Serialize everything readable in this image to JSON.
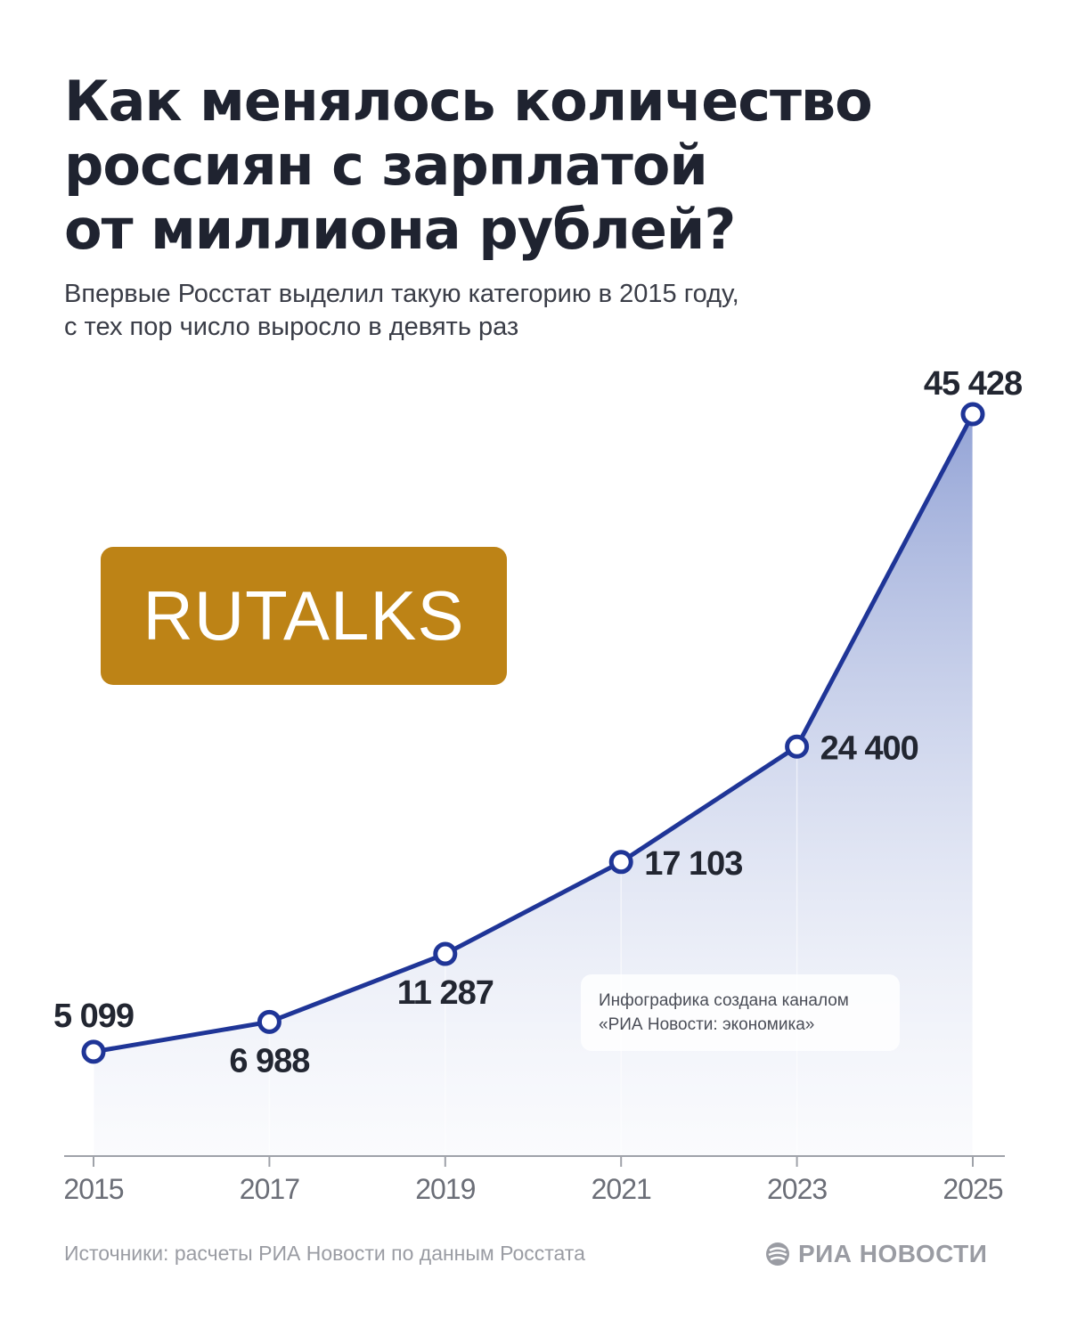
{
  "header": {
    "title_lines": [
      "Как менялось количество",
      "россиян с зарплатой",
      "от миллиона рублей?"
    ],
    "subtitle_lines": [
      "Впервые Росстат выделил такую категорию в 2015 году,",
      "с тех пор число выросло в девять раз"
    ]
  },
  "watermark": {
    "text": "RUTALKS",
    "color": "#bd8316"
  },
  "credit_box": {
    "lines": [
      "Инфографика создана каналом",
      "«РИА Новости: экономика»"
    ]
  },
  "footer": {
    "source": "Источники: расчеты РИА Новости по данным Росстата",
    "brand": "РИА НОВОСТИ",
    "brand_icon": "ria-logo-icon"
  },
  "colors": {
    "line": "#1f3597",
    "fill_top": "#8e9fd4",
    "text": "#222631",
    "axis_label": "#6b6e77"
  },
  "chart_data": {
    "type": "area",
    "categories": [
      "2015",
      "2017",
      "2019",
      "2021",
      "2023",
      "2025"
    ],
    "values": [
      5099,
      6988,
      11287,
      17103,
      24400,
      45428
    ],
    "labels": [
      "5 099",
      "6 988",
      "11 287",
      "17 103",
      "24 400",
      "45 428"
    ],
    "ylim": [
      -1500,
      45428
    ],
    "grid": false,
    "markers": "hollow-circle"
  }
}
